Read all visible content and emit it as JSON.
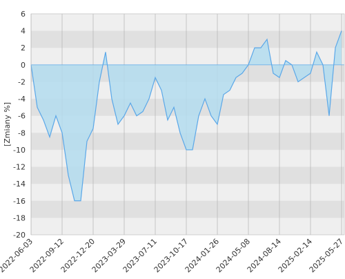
{
  "chart_data": {
    "type": "area",
    "y_label": "[Zmiany %]",
    "categories": [
      "2022-06-03",
      null,
      null,
      null,
      null,
      "2022-09-12",
      null,
      null,
      null,
      null,
      "2022-12-20",
      null,
      null,
      null,
      null,
      "2023-03-29",
      null,
      null,
      null,
      null,
      "2023-07-11",
      null,
      null,
      null,
      null,
      "2023-10-17",
      null,
      null,
      null,
      null,
      "2024-01-26",
      null,
      null,
      null,
      null,
      "2024-05-08",
      null,
      null,
      null,
      null,
      "2024-08-14",
      null,
      null,
      null,
      null,
      "2025-02-14",
      null,
      null,
      null,
      null,
      "2025-05-27"
    ],
    "series": [
      {
        "color": "#5aa7e8",
        "fill": "#b3dcee",
        "values": [
          0,
          -5,
          -6.5,
          -8.5,
          -6,
          -8,
          -13,
          -16,
          -16,
          -9,
          -7.5,
          -2,
          1.5,
          -4,
          -7,
          -6,
          -4.5,
          -6,
          -5.5,
          -4,
          -1.5,
          -3,
          -6.5,
          -5,
          -8,
          -10,
          -10,
          -6,
          -4,
          -6,
          -7,
          -3.5,
          -3,
          -1.5,
          -1,
          0,
          2,
          2,
          3,
          -1,
          -1.5,
          0.5,
          0,
          -2,
          -1.5,
          -1,
          1.5,
          0,
          -6,
          2,
          4
        ]
      }
    ],
    "ylim": [
      -20,
      6
    ],
    "yticks": [
      -20,
      -18,
      -16,
      -14,
      -12,
      -10,
      -8,
      -6,
      -4,
      -2,
      0,
      2,
      4,
      6
    ],
    "grid": true
  }
}
